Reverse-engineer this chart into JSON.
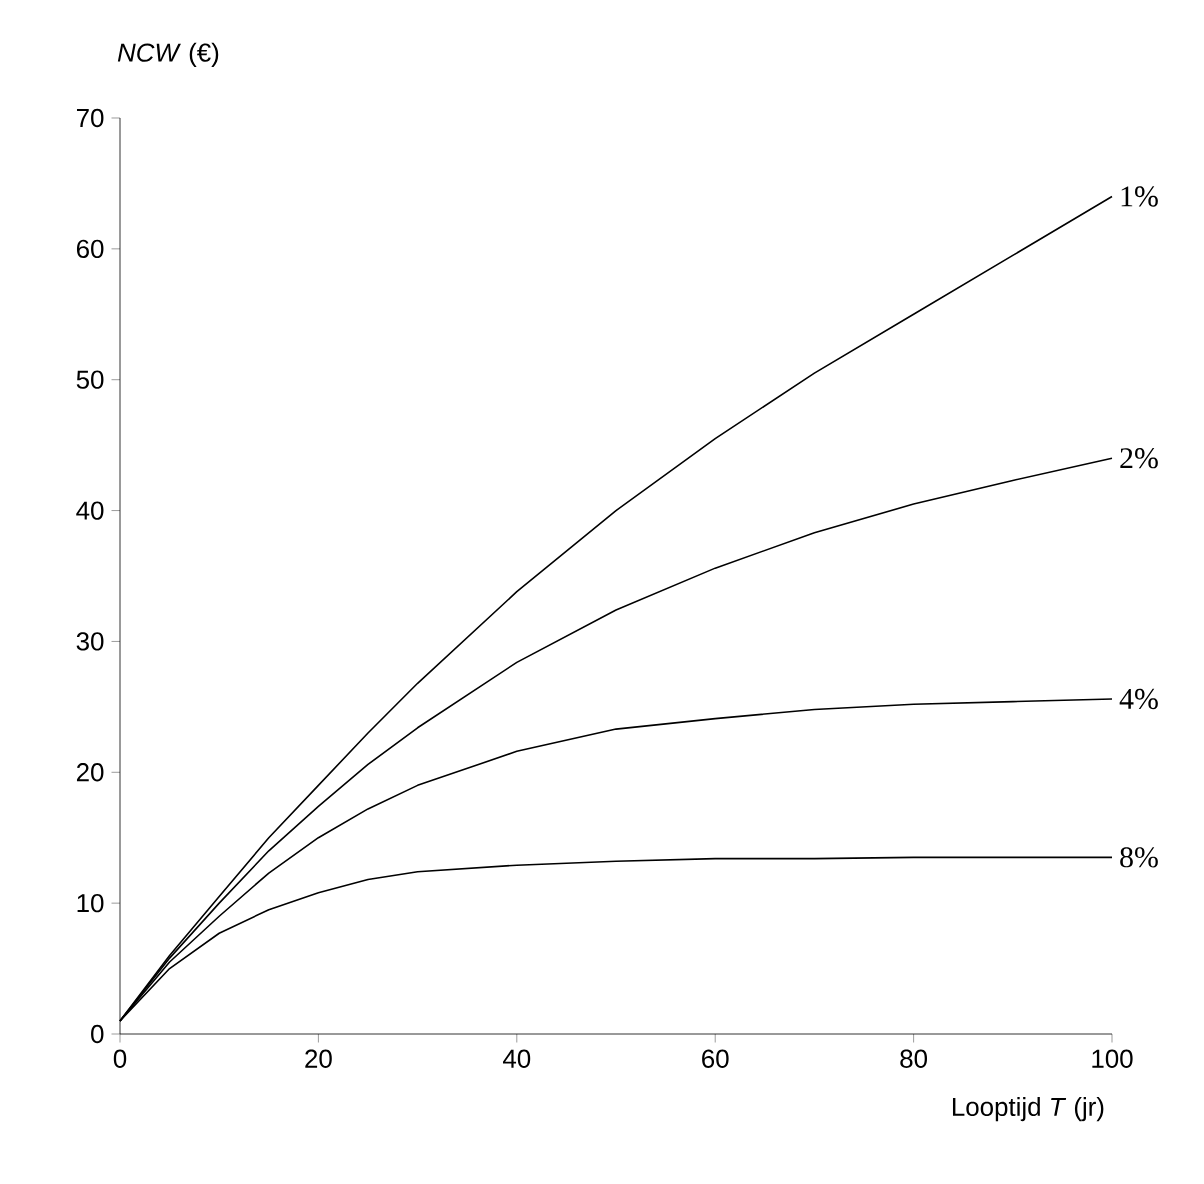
{
  "chart_data": {
    "type": "line",
    "xlabel": "Looptijd *T* (jr)",
    "ylabel": "*NCW* (€)",
    "x": [
      0,
      5,
      10,
      15,
      20,
      25,
      30,
      40,
      50,
      60,
      70,
      80,
      90,
      100
    ],
    "series": [
      {
        "name": "1%",
        "color": "#000000",
        "values": [
          1,
          6,
          10.5,
          15,
          19,
          23,
          26.8,
          33.8,
          40,
          45.5,
          50.5,
          55,
          59.5,
          64
        ]
      },
      {
        "name": "2%",
        "color": "#000000",
        "values": [
          1,
          5.8,
          10,
          14,
          17.4,
          20.6,
          23.4,
          28.4,
          32.4,
          35.6,
          38.3,
          40.5,
          42.3,
          44
        ]
      },
      {
        "name": "4%",
        "color": "#000000",
        "values": [
          1,
          5.5,
          9,
          12.3,
          15,
          17.2,
          19,
          21.6,
          23.3,
          24.1,
          24.8,
          25.2,
          25.4,
          25.6
        ]
      },
      {
        "name": "8%",
        "color": "#000000",
        "values": [
          1,
          5,
          7.7,
          9.5,
          10.8,
          11.8,
          12.4,
          12.9,
          13.2,
          13.4,
          13.4,
          13.5,
          13.5,
          13.5
        ]
      }
    ],
    "xlim": [
      0,
      100
    ],
    "ylim": [
      0,
      70
    ],
    "xticks": [
      0,
      20,
      40,
      60,
      80,
      100
    ],
    "yticks": [
      0,
      10,
      20,
      30,
      40,
      50,
      60,
      70
    ],
    "grid": false,
    "legend": false,
    "marker": "none",
    "line_style": "solid"
  }
}
